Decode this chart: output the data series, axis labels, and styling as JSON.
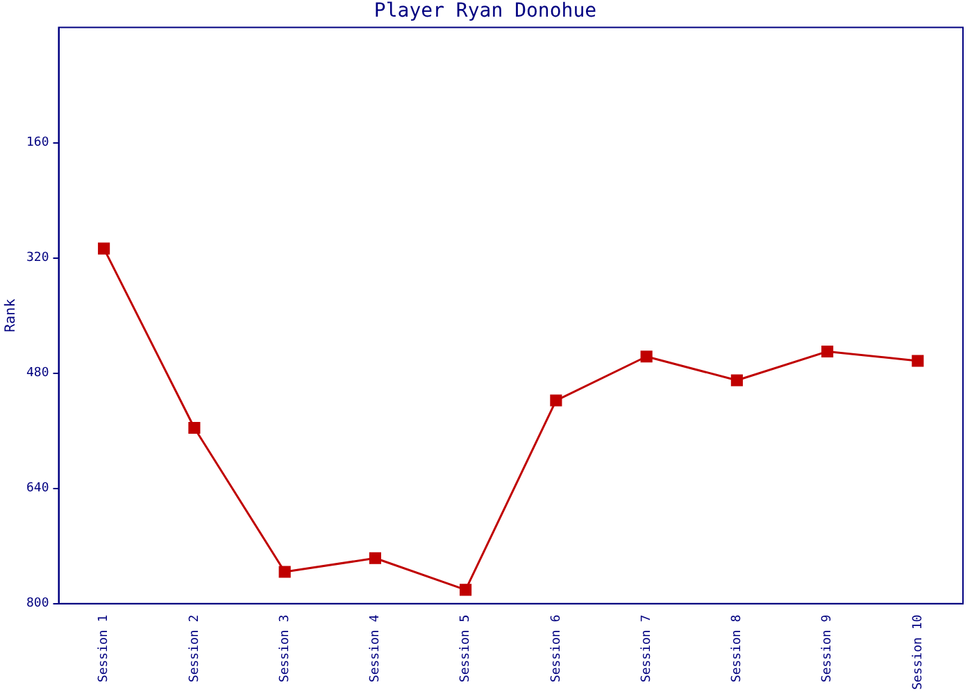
{
  "chart_data": {
    "type": "line",
    "title": "Player Ryan Donohue",
    "ylabel": "Rank",
    "categories": [
      "Session 1",
      "Session 2",
      "Session 3",
      "Session 4",
      "Session 5",
      "Session 6",
      "Session 7",
      "Session 8",
      "Session 9",
      "Session 10"
    ],
    "series": [
      {
        "color": "#c00000",
        "values": [
          307,
          556,
          756,
          737,
          781,
          518,
          457,
          490,
          450,
          463
        ]
      }
    ],
    "ylim": [
      800,
      0
    ],
    "yticks": [
      160,
      320,
      480,
      640,
      800
    ],
    "grid": false,
    "legend": false,
    "marker": "square",
    "line_style": "solid"
  }
}
